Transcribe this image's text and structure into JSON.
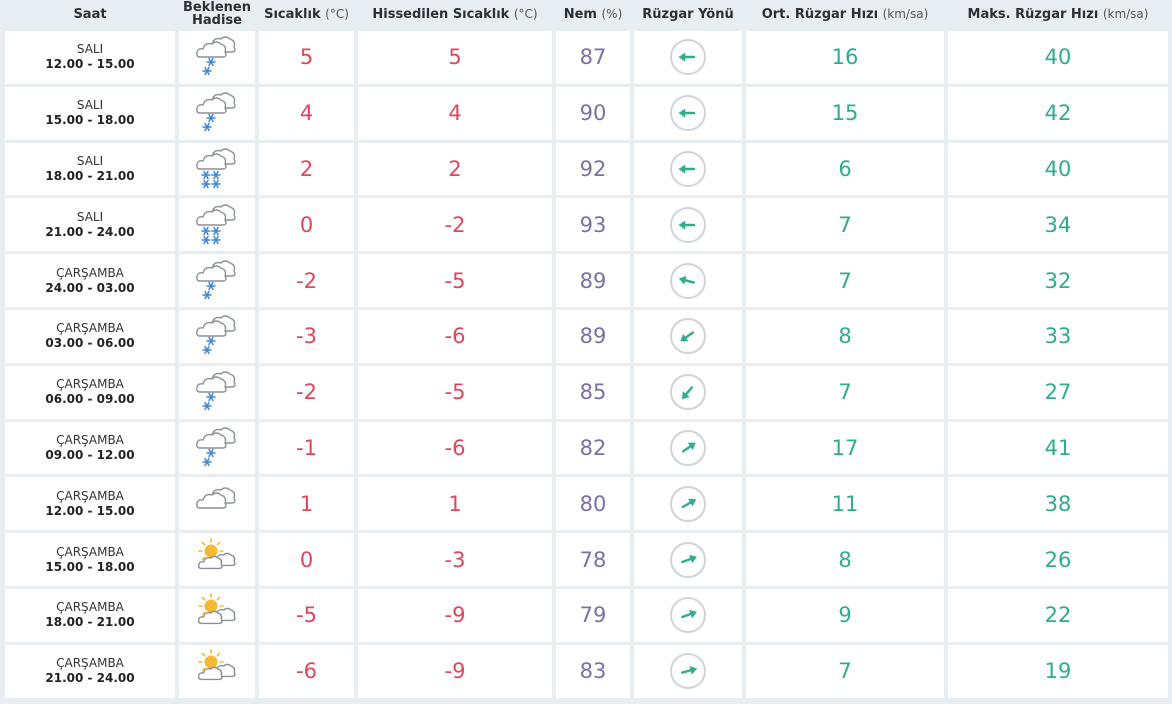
{
  "headers": {
    "saat": "Saat",
    "hadise": "Beklenen Hadise",
    "sicaklik": "Sıcaklık",
    "sicaklik_unit": "(°C)",
    "hissedilen": "Hissedilen Sıcaklık",
    "hissedilen_unit": "(°C)",
    "nem": "Nem",
    "nem_unit": "(%)",
    "yon": "Rüzgar Yönü",
    "ort": "Ort. Rüzgar Hızı",
    "ort_unit": "(km/sa)",
    "maks": "Maks. Rüzgar Hızı",
    "maks_unit": "(km/sa)"
  },
  "colors": {
    "temperature": "#e0455a",
    "humidity": "#7a6fa6",
    "wind": "#2eac8e",
    "snowflake": "#3f86d6",
    "sun": "#f5b933"
  },
  "rows": [
    {
      "day": "SALI",
      "range": "12.00 - 15.00",
      "icon": "cloud-light-snow-icon",
      "temp": "5",
      "feels": "5",
      "hum": "87",
      "dir_deg": 180,
      "avg": "16",
      "max": "40"
    },
    {
      "day": "SALI",
      "range": "15.00 - 18.00",
      "icon": "cloud-light-snow-icon",
      "temp": "4",
      "feels": "4",
      "hum": "90",
      "dir_deg": 180,
      "avg": "15",
      "max": "42"
    },
    {
      "day": "SALI",
      "range": "18.00 - 21.00",
      "icon": "cloud-snow-icon",
      "temp": "2",
      "feels": "2",
      "hum": "92",
      "dir_deg": 180,
      "avg": "6",
      "max": "40"
    },
    {
      "day": "SALI",
      "range": "21.00 - 24.00",
      "icon": "cloud-snow-icon",
      "temp": "0",
      "feels": "-2",
      "hum": "93",
      "dir_deg": 180,
      "avg": "7",
      "max": "34"
    },
    {
      "day": "ÇARŞAMBA",
      "range": "24.00 - 03.00",
      "icon": "cloud-light-snow-icon",
      "temp": "-2",
      "feels": "-5",
      "hum": "89",
      "dir_deg": 195,
      "avg": "7",
      "max": "32"
    },
    {
      "day": "ÇARŞAMBA",
      "range": "03.00 - 06.00",
      "icon": "cloud-light-snow-icon",
      "temp": "-3",
      "feels": "-6",
      "hum": "89",
      "dir_deg": 145,
      "avg": "8",
      "max": "33"
    },
    {
      "day": "ÇARŞAMBA",
      "range": "06.00 - 09.00",
      "icon": "cloud-light-snow-icon",
      "temp": "-2",
      "feels": "-5",
      "hum": "85",
      "dir_deg": 130,
      "avg": "7",
      "max": "27"
    },
    {
      "day": "ÇARŞAMBA",
      "range": "09.00 - 12.00",
      "icon": "cloud-light-snow-icon",
      "temp": "-1",
      "feels": "-6",
      "hum": "82",
      "dir_deg": 325,
      "avg": "17",
      "max": "41"
    },
    {
      "day": "ÇARŞAMBA",
      "range": "12.00 - 15.00",
      "icon": "cloud-icon",
      "temp": "1",
      "feels": "1",
      "hum": "80",
      "dir_deg": 330,
      "avg": "11",
      "max": "38"
    },
    {
      "day": "ÇARŞAMBA",
      "range": "15.00 - 18.00",
      "icon": "sun-cloud-icon",
      "temp": "0",
      "feels": "-3",
      "hum": "78",
      "dir_deg": 340,
      "avg": "8",
      "max": "26"
    },
    {
      "day": "ÇARŞAMBA",
      "range": "18.00 - 21.00",
      "icon": "sun-cloud-icon",
      "temp": "-5",
      "feels": "-9",
      "hum": "79",
      "dir_deg": 340,
      "avg": "9",
      "max": "22"
    },
    {
      "day": "ÇARŞAMBA",
      "range": "21.00 - 24.00",
      "icon": "sun-cloud-icon",
      "temp": "-6",
      "feels": "-9",
      "hum": "83",
      "dir_deg": 345,
      "avg": "7",
      "max": "19"
    }
  ]
}
